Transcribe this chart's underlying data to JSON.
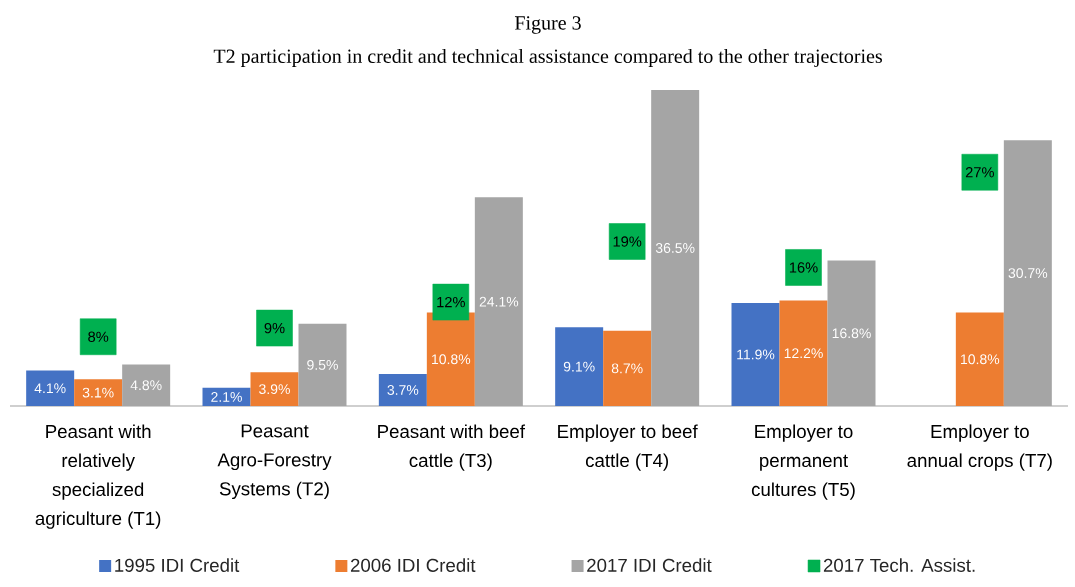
{
  "chart_data": {
    "type": "bar",
    "title": "Figure 3",
    "subtitle": "T2 participation in credit and technical assistance compared to the other trajectories",
    "categories": [
      "Peasant with relatively specialized agriculture (T1)",
      "Peasant Agro-Forestry Systems (T2)",
      "Peasant with beef cattle (T3)",
      "Employer to beef cattle (T4)",
      "Employer to permanent cultures (T5)",
      "Employer to annual crops (T7)"
    ],
    "series": [
      {
        "name": "1995 IDI Credit",
        "color": "#4472c4",
        "values": [
          4.1,
          2.1,
          3.7,
          9.1,
          11.9,
          null
        ],
        "value_labels": [
          "4.1%",
          "2.1%",
          "3.7%",
          "9.1%",
          "11.9%",
          null
        ]
      },
      {
        "name": "2006 IDI Credit",
        "color": "#ed7d31",
        "values": [
          3.1,
          3.9,
          10.8,
          8.7,
          12.2,
          10.8
        ],
        "value_labels": [
          "3.1%",
          "3.9%",
          "10.8%",
          "8.7%",
          "12.2%",
          "10.8%"
        ]
      },
      {
        "name": "2017 IDI Credit",
        "color": "#a5a5a5",
        "values": [
          4.8,
          9.5,
          24.1,
          36.5,
          16.8,
          30.7
        ],
        "value_labels": [
          "4.8%",
          "9.5%",
          "24.1%",
          "36.5%",
          "16.8%",
          "30.7%"
        ]
      },
      {
        "name": "2017 Tech. Assist.",
        "type": "scatter",
        "color": "#00b050",
        "values": [
          8,
          9,
          12,
          19,
          16,
          27
        ],
        "value_labels": [
          "8%",
          "9%",
          "12%",
          "19%",
          "16%",
          "27%"
        ]
      }
    ],
    "marker": "square",
    "legend": "bottom",
    "tick_labels": "x"
  }
}
